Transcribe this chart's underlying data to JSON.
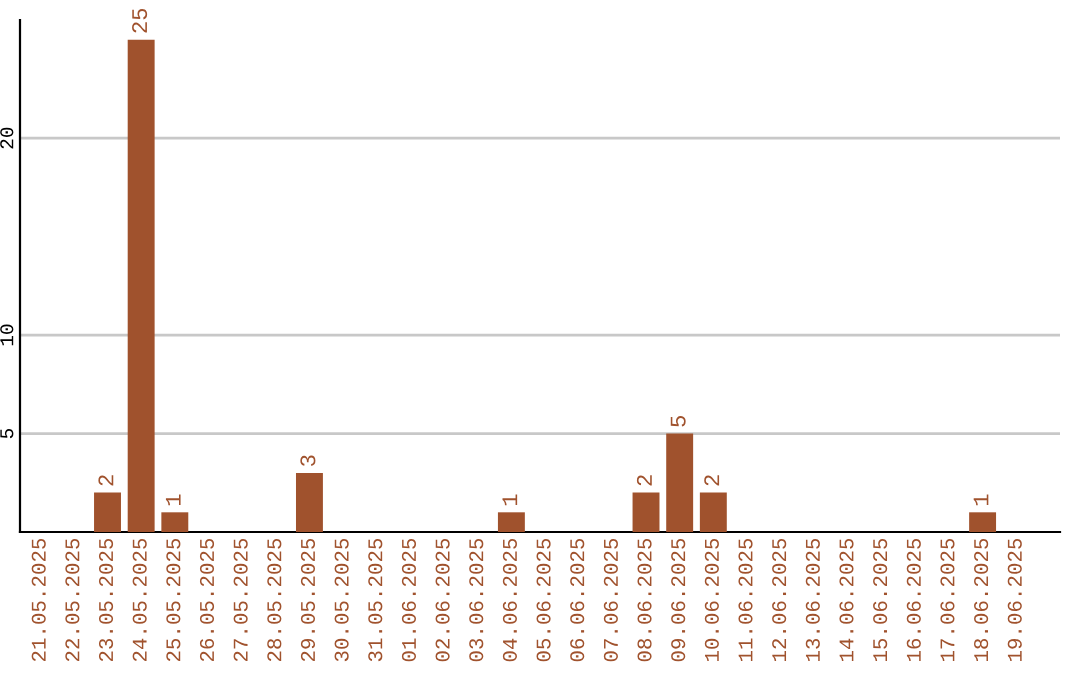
{
  "chart_data": {
    "type": "bar",
    "categories": [
      "21.05.2025",
      "22.05.2025",
      "23.05.2025",
      "24.05.2025",
      "25.05.2025",
      "26.05.2025",
      "27.05.2025",
      "28.05.2025",
      "29.05.2025",
      "30.05.2025",
      "31.05.2025",
      "01.06.2025",
      "02.06.2025",
      "03.06.2025",
      "04.06.2025",
      "05.06.2025",
      "06.06.2025",
      "07.06.2025",
      "08.06.2025",
      "09.06.2025",
      "10.06.2025",
      "11.06.2025",
      "12.06.2025",
      "13.06.2025",
      "14.06.2025",
      "15.06.2025",
      "16.06.2025",
      "17.06.2025",
      "18.06.2025",
      "19.06.2025"
    ],
    "values": [
      0,
      0,
      2,
      25,
      1,
      0,
      0,
      0,
      3,
      0,
      0,
      0,
      0,
      0,
      1,
      0,
      0,
      0,
      2,
      5,
      2,
      0,
      0,
      0,
      0,
      0,
      0,
      0,
      1,
      0
    ],
    "value_labels": [
      null,
      null,
      "2",
      "25",
      "1",
      null,
      null,
      null,
      "3",
      null,
      null,
      null,
      null,
      null,
      "1",
      null,
      null,
      null,
      "2",
      "5",
      "2",
      null,
      null,
      null,
      null,
      null,
      null,
      null,
      "1",
      null
    ],
    "color": "#a0522d",
    "ylim": [
      0,
      26
    ],
    "yticks": [
      5,
      10,
      20
    ],
    "grid": "y"
  }
}
